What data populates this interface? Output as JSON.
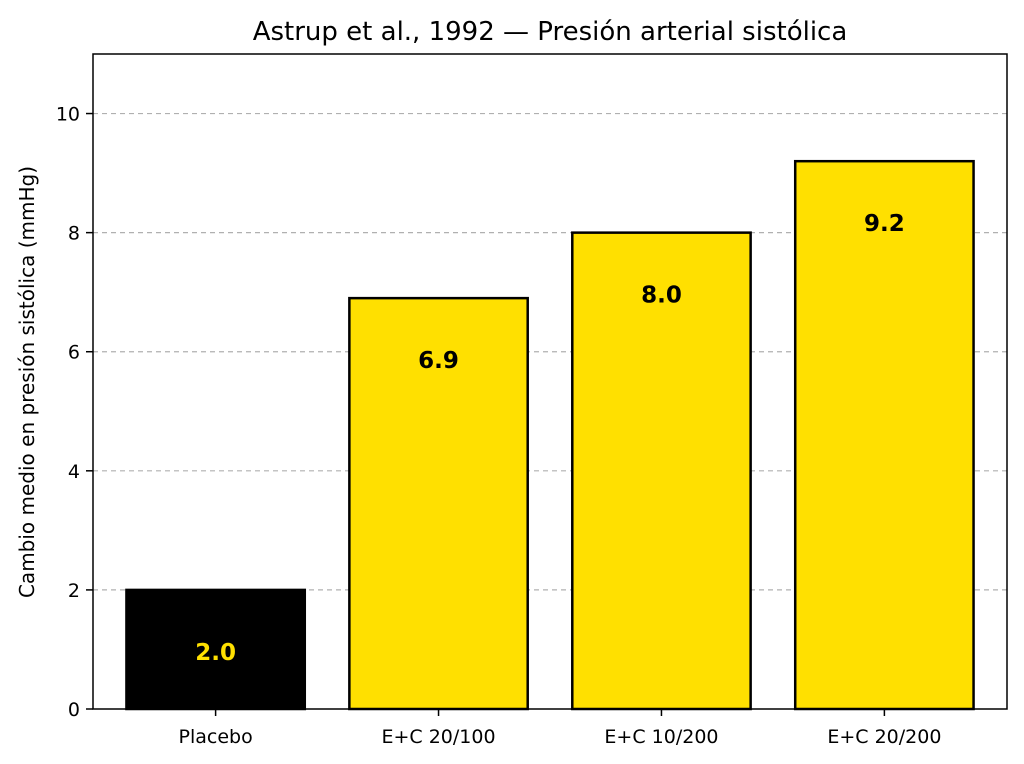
{
  "chart_data": {
    "type": "bar",
    "title": "Astrup et al., 1992 — Presión arterial sistólica",
    "xlabel": "",
    "ylabel": "Cambio medio en presión sistólica (mmHg)",
    "categories": [
      "Placebo",
      "E+C 20/100",
      "E+C 10/200",
      "E+C 20/200"
    ],
    "values": [
      2.0,
      6.9,
      8.0,
      9.2
    ],
    "data_labels": [
      "2.0",
      "6.9",
      "8.0",
      "9.2"
    ],
    "bar_colors": [
      "#000000",
      "#FFE000",
      "#FFE000",
      "#FFE000"
    ],
    "label_colors": [
      "#FFE000",
      "#000000",
      "#000000",
      "#000000"
    ],
    "ylim": [
      0,
      11
    ],
    "yticks": [
      0,
      2,
      4,
      6,
      8,
      10
    ],
    "ytick_labels": [
      "0",
      "2",
      "4",
      "6",
      "8",
      "10"
    ],
    "grid": {
      "axis": "y",
      "style": "dashed",
      "color": "#b0b0b0"
    },
    "legend": "none"
  }
}
